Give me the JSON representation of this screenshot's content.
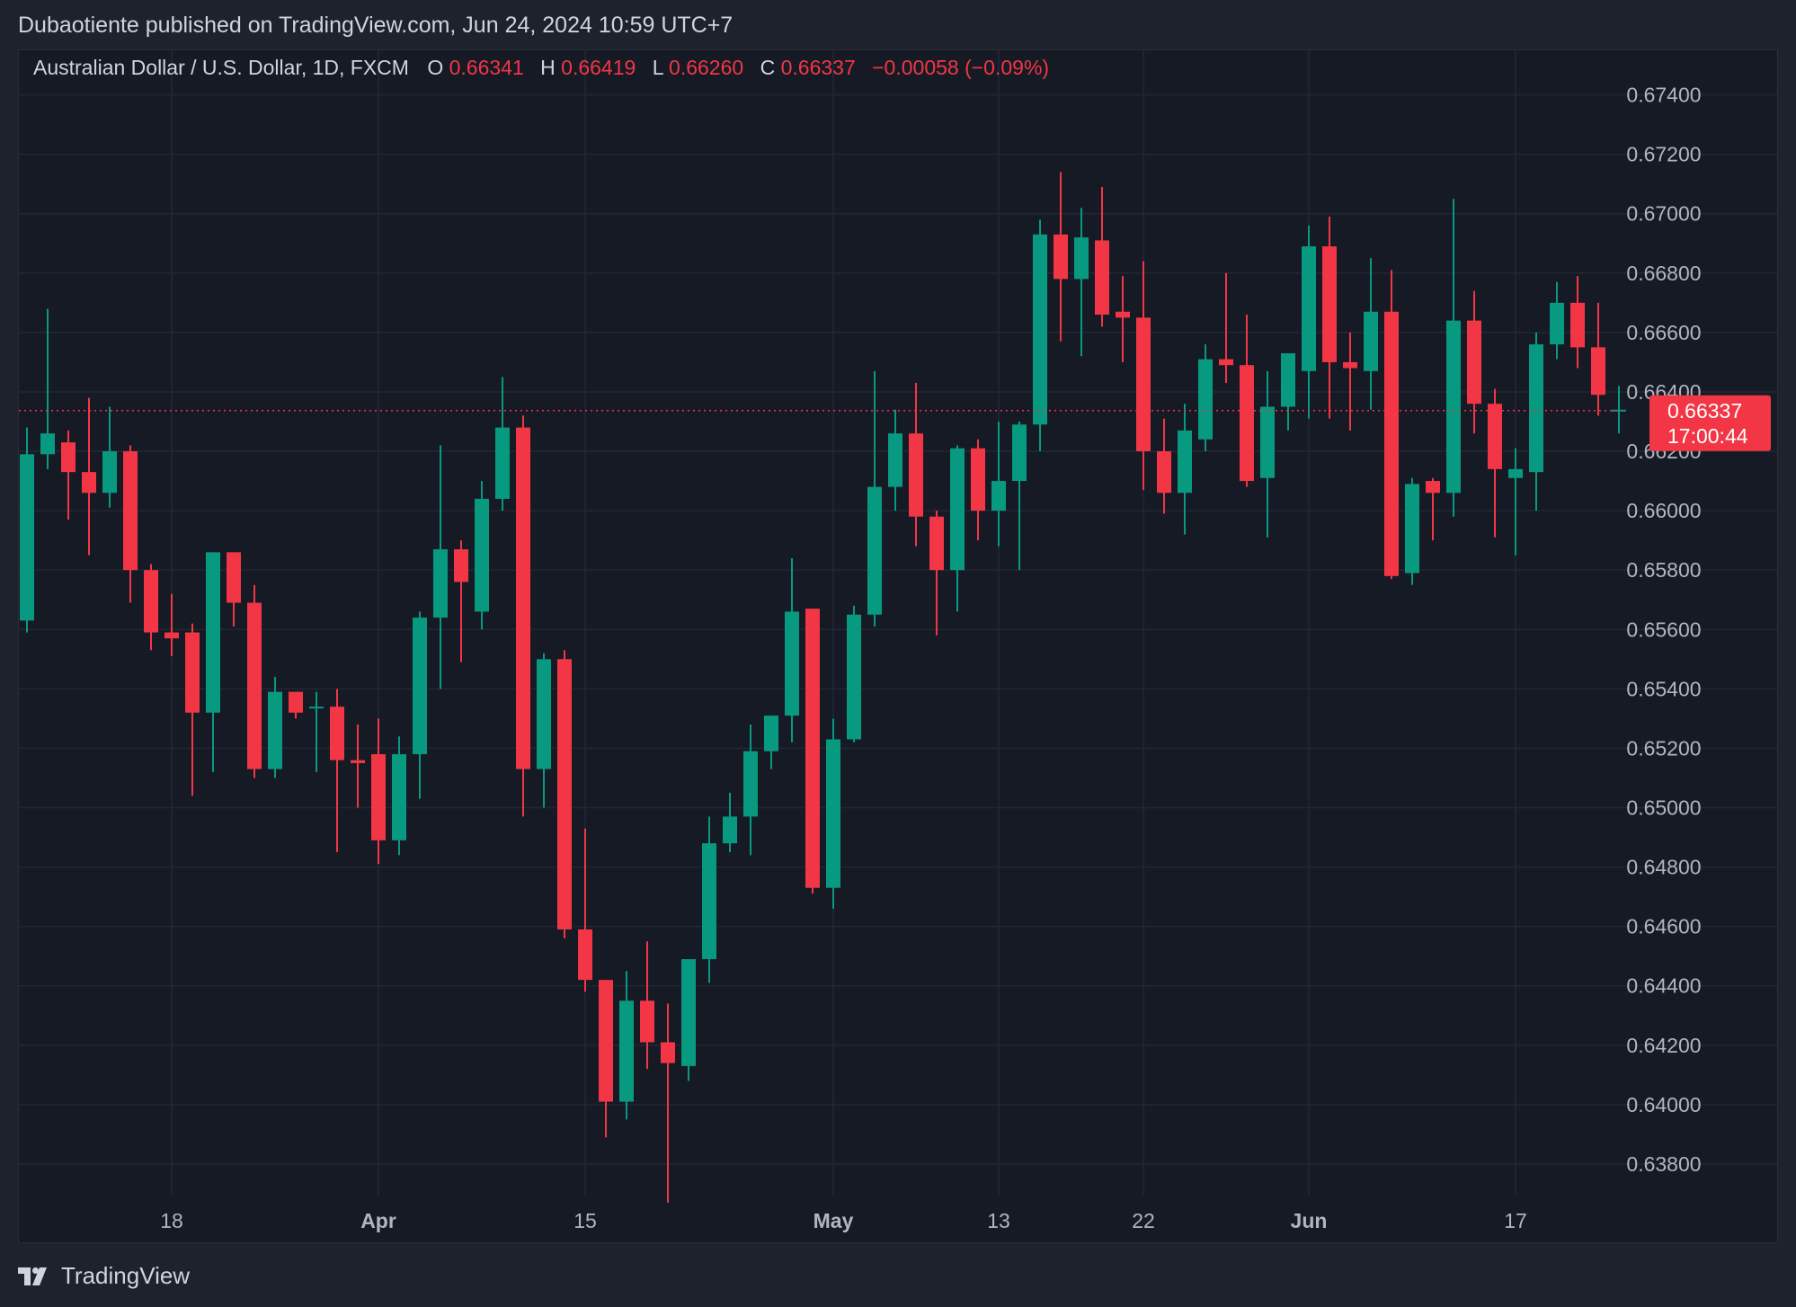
{
  "header": {
    "published_line": "Dubaotiente published on TradingView.com, Jun 24, 2024 10:59 UTC+7"
  },
  "footer": {
    "brand": "TradingView",
    "logo_icon": "tradingview-logo-icon"
  },
  "colors": {
    "up": "#089981",
    "down": "#f23645",
    "background": "#161a25",
    "grid": "#232734",
    "text": "#b2b5be"
  },
  "chart_data": {
    "type": "candlestick",
    "title": "Australian Dollar / U.S. Dollar, 1D, FXCM",
    "ohlc_legend": {
      "o_label": "O",
      "o_value": "0.66341",
      "h_label": "H",
      "h_value": "0.66419",
      "l_label": "L",
      "l_value": "0.66260",
      "c_label": "C",
      "c_value": "0.66337",
      "change": "−0.00058 (−0.09%)"
    },
    "last_price_tag": {
      "price": "0.66337",
      "countdown": "17:00:44",
      "value": 0.66337
    },
    "ylim": [
      0.637,
      0.6755
    ],
    "y_ticks": [
      "0.63800",
      "0.64000",
      "0.64200",
      "0.64400",
      "0.64600",
      "0.64800",
      "0.65000",
      "0.65200",
      "0.65400",
      "0.65600",
      "0.65800",
      "0.66000",
      "0.66200",
      "0.66400",
      "0.66600",
      "0.66800",
      "0.67000",
      "0.67200",
      "0.67400"
    ],
    "x_ticks": [
      {
        "label": "18",
        "index": 7,
        "bold": false
      },
      {
        "label": "Apr",
        "index": 17,
        "bold": true
      },
      {
        "label": "15",
        "index": 27,
        "bold": false
      },
      {
        "label": "May",
        "index": 39,
        "bold": true
      },
      {
        "label": "13",
        "index": 47,
        "bold": false
      },
      {
        "label": "22",
        "index": 54,
        "bold": false
      },
      {
        "label": "Jun",
        "index": 62,
        "bold": true
      },
      {
        "label": "17",
        "index": 72,
        "bold": false
      }
    ],
    "grid": true,
    "candles": [
      [
        0.6563,
        0.6628,
        0.6559,
        0.6619
      ],
      [
        0.6619,
        0.6668,
        0.6614,
        0.6626
      ],
      [
        0.6623,
        0.6627,
        0.6597,
        0.6613
      ],
      [
        0.6613,
        0.6638,
        0.6585,
        0.6606
      ],
      [
        0.6606,
        0.6635,
        0.6601,
        0.662
      ],
      [
        0.662,
        0.6622,
        0.6569,
        0.658
      ],
      [
        0.658,
        0.6582,
        0.6553,
        0.6559
      ],
      [
        0.6559,
        0.6572,
        0.6551,
        0.6557
      ],
      [
        0.6559,
        0.6562,
        0.6504,
        0.6532
      ],
      [
        0.6532,
        0.6586,
        0.6512,
        0.6586
      ],
      [
        0.6586,
        0.6586,
        0.6561,
        0.6569
      ],
      [
        0.6569,
        0.6575,
        0.651,
        0.6513
      ],
      [
        0.6513,
        0.6544,
        0.651,
        0.6539
      ],
      [
        0.6539,
        0.6539,
        0.653,
        0.6532
      ],
      [
        0.6534,
        0.6539,
        0.6512,
        0.6534
      ],
      [
        0.6534,
        0.654,
        0.6485,
        0.6516
      ],
      [
        0.6516,
        0.6528,
        0.65,
        0.6515
      ],
      [
        0.6518,
        0.653,
        0.6481,
        0.6489
      ],
      [
        0.6489,
        0.6524,
        0.6484,
        0.6518
      ],
      [
        0.6518,
        0.6566,
        0.6503,
        0.6564
      ],
      [
        0.6564,
        0.6622,
        0.654,
        0.6587
      ],
      [
        0.6587,
        0.659,
        0.6549,
        0.6576
      ],
      [
        0.6566,
        0.661,
        0.656,
        0.6604
      ],
      [
        0.6604,
        0.6645,
        0.66,
        0.6628
      ],
      [
        0.6628,
        0.6632,
        0.6497,
        0.6513
      ],
      [
        0.6513,
        0.6552,
        0.65,
        0.655
      ],
      [
        0.655,
        0.6553,
        0.6456,
        0.6459
      ],
      [
        0.6459,
        0.6493,
        0.6438,
        0.6442
      ],
      [
        0.6442,
        0.6441,
        0.6389,
        0.6401
      ],
      [
        0.6401,
        0.6445,
        0.6395,
        0.6435
      ],
      [
        0.6435,
        0.6455,
        0.6412,
        0.6421
      ],
      [
        0.6421,
        0.6434,
        0.6367,
        0.6414
      ],
      [
        0.6413,
        0.6449,
        0.6408,
        0.6449
      ],
      [
        0.6449,
        0.6497,
        0.6441,
        0.6488
      ],
      [
        0.6488,
        0.6505,
        0.6485,
        0.6497
      ],
      [
        0.6497,
        0.6528,
        0.6484,
        0.6519
      ],
      [
        0.6519,
        0.653,
        0.6513,
        0.6531
      ],
      [
        0.6531,
        0.6584,
        0.6522,
        0.6566
      ],
      [
        0.6567,
        0.6567,
        0.6471,
        0.6473
      ],
      [
        0.6473,
        0.653,
        0.6466,
        0.6523
      ],
      [
        0.6523,
        0.6568,
        0.6522,
        0.6565
      ],
      [
        0.6565,
        0.6647,
        0.6561,
        0.6608
      ],
      [
        0.6608,
        0.6634,
        0.66,
        0.6626
      ],
      [
        0.6626,
        0.6643,
        0.6588,
        0.6598
      ],
      [
        0.6598,
        0.66,
        0.6558,
        0.658
      ],
      [
        0.658,
        0.6622,
        0.6566,
        0.6621
      ],
      [
        0.6621,
        0.6624,
        0.659,
        0.66
      ],
      [
        0.66,
        0.663,
        0.6588,
        0.661
      ],
      [
        0.661,
        0.663,
        0.658,
        0.6629
      ],
      [
        0.6629,
        0.6698,
        0.662,
        0.6693
      ],
      [
        0.6693,
        0.6714,
        0.6657,
        0.6678
      ],
      [
        0.6678,
        0.6702,
        0.6652,
        0.6692
      ],
      [
        0.6691,
        0.6709,
        0.6662,
        0.6666
      ],
      [
        0.6667,
        0.6679,
        0.665,
        0.6665
      ],
      [
        0.6665,
        0.6684,
        0.6607,
        0.662
      ],
      [
        0.662,
        0.6631,
        0.6599,
        0.6606
      ],
      [
        0.6606,
        0.6636,
        0.6592,
        0.6627
      ],
      [
        0.6624,
        0.6656,
        0.662,
        0.6651
      ],
      [
        0.6651,
        0.668,
        0.6643,
        0.6649
      ],
      [
        0.6649,
        0.6666,
        0.6608,
        0.661
      ],
      [
        0.6611,
        0.6647,
        0.6591,
        0.6635
      ],
      [
        0.6635,
        0.6652,
        0.6627,
        0.6653
      ],
      [
        0.6647,
        0.6696,
        0.6631,
        0.6689
      ],
      [
        0.6689,
        0.6699,
        0.6631,
        0.665
      ],
      [
        0.665,
        0.666,
        0.6627,
        0.6648
      ],
      [
        0.6647,
        0.6685,
        0.6634,
        0.6667
      ],
      [
        0.6667,
        0.6681,
        0.6577,
        0.6578
      ],
      [
        0.6579,
        0.6611,
        0.6575,
        0.6609
      ],
      [
        0.661,
        0.6611,
        0.659,
        0.6606
      ],
      [
        0.6606,
        0.6705,
        0.6598,
        0.6664
      ],
      [
        0.6664,
        0.6674,
        0.6626,
        0.6636
      ],
      [
        0.6636,
        0.6641,
        0.6591,
        0.6614
      ],
      [
        0.6611,
        0.6621,
        0.6585,
        0.6614
      ],
      [
        0.6613,
        0.666,
        0.66,
        0.6656
      ],
      [
        0.6656,
        0.6677,
        0.6651,
        0.667
      ],
      [
        0.667,
        0.6679,
        0.6648,
        0.6655
      ],
      [
        0.6655,
        0.667,
        0.6632,
        0.6639
      ],
      [
        0.6634,
        0.6642,
        0.6626,
        0.6634
      ]
    ]
  }
}
